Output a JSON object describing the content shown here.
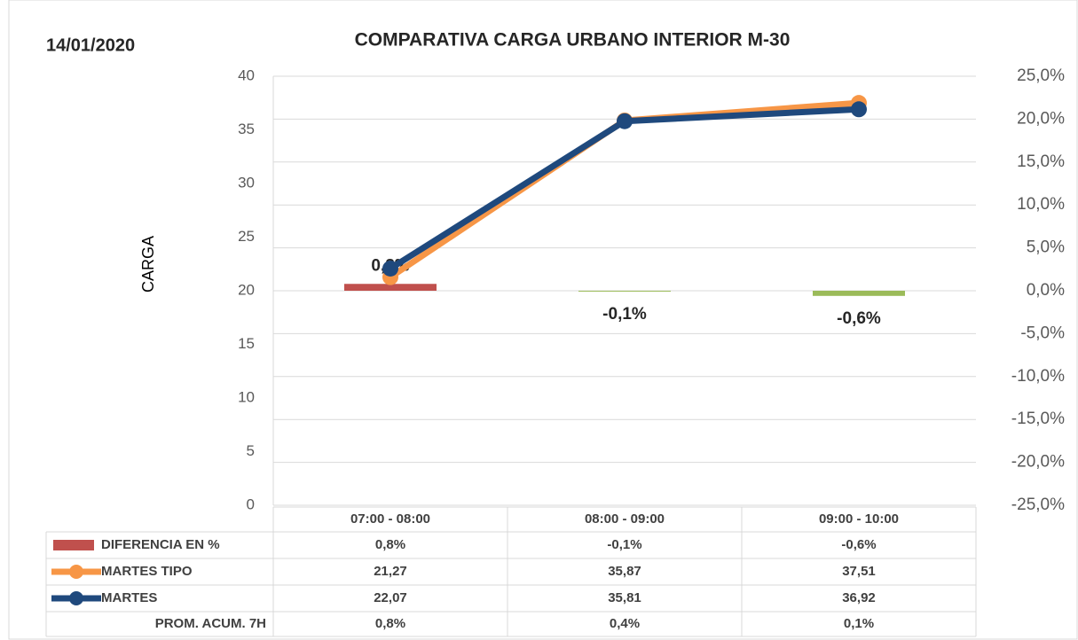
{
  "chart_data": {
    "type": "bar",
    "annotation": "14/01/2020",
    "title": "COMPARATIVA CARGA URBANO INTERIOR M-30",
    "y_label": "CARGA",
    "categories": [
      "07:00 - 08:00",
      "08:00 - 09:00",
      "09:00 - 10:00"
    ],
    "ylim": [
      0,
      40
    ],
    "yticks": [
      0,
      5,
      10,
      15,
      20,
      25,
      30,
      35,
      40
    ],
    "y2lim": [
      -25,
      25
    ],
    "y2ticks": [
      {
        "value": -25,
        "label": "-25,0%"
      },
      {
        "value": -20,
        "label": "-20,0%"
      },
      {
        "value": -15,
        "label": "-15,0%"
      },
      {
        "value": -10,
        "label": "-10,0%"
      },
      {
        "value": -5,
        "label": "-5,0%"
      },
      {
        "value": 0,
        "label": "0,0%"
      },
      {
        "value": 5,
        "label": "5,0%"
      },
      {
        "value": 10,
        "label": "10,0%"
      },
      {
        "value": 15,
        "label": "15,0%"
      },
      {
        "value": 20,
        "label": "20,0%"
      },
      {
        "value": 25,
        "label": "25,0%"
      }
    ],
    "grid": true,
    "series": [
      {
        "name": "DIFERENCIA EN %",
        "type": "bar",
        "axis": "y2",
        "colors": [
          "#c0504d",
          "#9bbb59",
          "#9bbb59"
        ],
        "values": [
          0.8,
          -0.1,
          -0.6
        ],
        "value_labels": [
          "0,8%",
          "-0,1%",
          "-0,6%"
        ]
      },
      {
        "name": "MARTES TIPO",
        "type": "line",
        "color": "#f79646",
        "values": [
          21.27,
          35.87,
          37.51
        ],
        "value_labels": [
          "21,27",
          "35,87",
          "37,51"
        ]
      },
      {
        "name": "MARTES",
        "type": "line",
        "color": "#1f497d",
        "values": [
          22.07,
          35.81,
          36.92
        ],
        "value_labels": [
          "22,07",
          "35,81",
          "36,92"
        ]
      },
      {
        "name": "PROM. ACUM. 7H",
        "type": "table",
        "values": [
          0.8,
          0.4,
          0.1
        ],
        "value_labels": [
          "0,8%",
          "0,4%",
          "0,1%"
        ]
      }
    ]
  }
}
